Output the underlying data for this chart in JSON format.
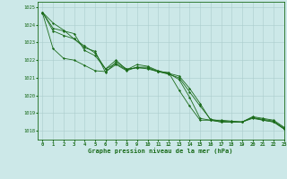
{
  "title": "Graphe pression niveau de la mer (hPa)",
  "x_labels": [
    "0",
    "1",
    "2",
    "3",
    "4",
    "5",
    "6",
    "7",
    "8",
    "9",
    "10",
    "11",
    "12",
    "13",
    "14",
    "15",
    "16",
    "17",
    "18",
    "19",
    "20",
    "21",
    "22",
    "23"
  ],
  "xlim": [
    -0.5,
    23
  ],
  "ylim": [
    1017.5,
    1025.3
  ],
  "yticks": [
    1018,
    1019,
    1020,
    1021,
    1022,
    1023,
    1024,
    1025
  ],
  "bg_color": "#cce8e8",
  "grid_color": "#aacccc",
  "line_color": "#1a6b1a",
  "line1": [
    1024.7,
    1024.1,
    1023.7,
    1023.2,
    1022.8,
    1022.4,
    1021.5,
    1021.8,
    1021.45,
    1021.6,
    1021.6,
    1021.35,
    1021.3,
    1020.3,
    1019.4,
    1018.6,
    1018.6,
    1018.5,
    1018.5,
    1018.5,
    1018.8,
    1018.7,
    1018.6,
    1018.2
  ],
  "line2": [
    1024.7,
    1023.8,
    1023.65,
    1023.5,
    1022.55,
    1022.25,
    1021.5,
    1022.0,
    1021.45,
    1021.75,
    1021.65,
    1021.4,
    1021.25,
    1021.1,
    1020.4,
    1019.55,
    1018.6,
    1018.5,
    1018.5,
    1018.5,
    1018.7,
    1018.6,
    1018.5,
    1018.1
  ],
  "line3": [
    1024.7,
    1023.65,
    1023.4,
    1023.2,
    1022.7,
    1022.5,
    1021.3,
    1021.9,
    1021.5,
    1021.55,
    1021.55,
    1021.35,
    1021.2,
    1021.0,
    1020.2,
    1019.4,
    1018.65,
    1018.55,
    1018.5,
    1018.5,
    1018.75,
    1018.65,
    1018.55,
    1018.15
  ],
  "line4": [
    1024.65,
    1022.65,
    1022.1,
    1022.0,
    1021.7,
    1021.4,
    1021.35,
    1021.75,
    1021.4,
    1021.6,
    1021.5,
    1021.35,
    1021.25,
    1020.9,
    1019.9,
    1018.7,
    1018.6,
    1018.6,
    1018.55,
    1018.5,
    1018.75,
    1018.6,
    1018.5,
    1018.1
  ],
  "lw": 0.6,
  "ms": 1.2,
  "title_fontsize": 5.0,
  "tick_fontsize": 4.0
}
